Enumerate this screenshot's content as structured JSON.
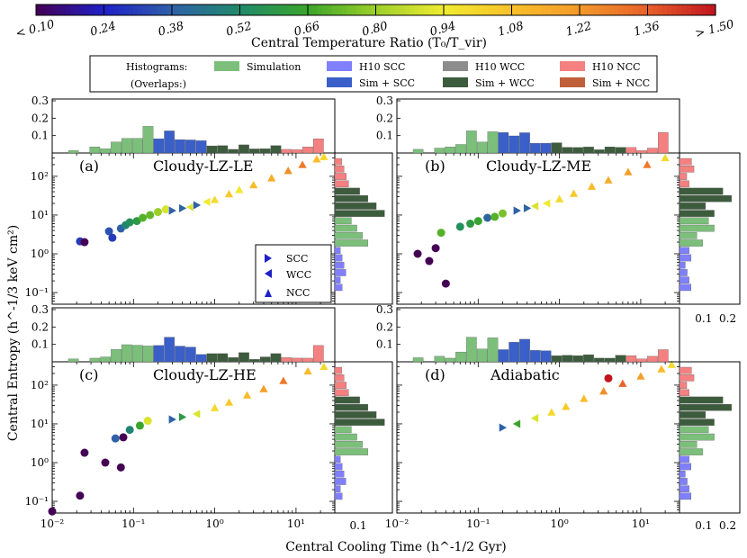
{
  "colorbar": {
    "label": "Central Temperature Ratio (T₀/T_vir)",
    "ticks": [
      "< 0.10",
      "0.24",
      "0.38",
      "0.52",
      "0.66",
      "0.80",
      "0.94",
      "1.08",
      "1.22",
      "1.36",
      "> 1.50"
    ],
    "colors": [
      "#440154",
      "#1f20c8",
      "#2f60a8",
      "#1f8a6a",
      "#3aa52a",
      "#9ccf2a",
      "#f0ec30",
      "#f9c02a",
      "#f39a2a",
      "#e8602a",
      "#c0141e"
    ]
  },
  "legend": {
    "histograms_label": "Histograms:",
    "overlaps_label": "(Overlaps:)",
    "items": [
      {
        "label": "Simulation",
        "color": "#7bbf7b"
      },
      {
        "label": "H10 SCC",
        "color": "#8080ff"
      },
      {
        "label": "H10 WCC",
        "color": "#8c8c8c"
      },
      {
        "label": "H10 NCC",
        "color": "#f48080"
      },
      {
        "label": "Sim + SCC",
        "color": "#3a5fc8"
      },
      {
        "label": "Sim + WCC",
        "color": "#3d5c3d"
      },
      {
        "label": "Sim + NCC",
        "color": "#c0603a"
      }
    ]
  },
  "marker_legend": [
    "SCC",
    "WCC",
    "NCC"
  ],
  "axes": {
    "xlabel": "Central Cooling Time (h^-1/2 Gyr)",
    "ylabel": "Central Entropy (h^-1/3 keV cm²)",
    "x_ticks": [
      "10⁻²",
      "10⁻¹",
      "10⁰",
      "10¹"
    ],
    "y_ticks": [
      "10⁻¹",
      "10⁰",
      "10¹",
      "10²"
    ],
    "top_hist_ticks": [
      "0.1",
      "0.2",
      "0.3"
    ],
    "side_hist_ticks": [
      "0.1",
      "0.2"
    ],
    "xlim": [
      0.01,
      30
    ],
    "ylim": [
      0.05,
      400
    ]
  },
  "chart_data": [
    {
      "type": "scatter",
      "panel": "(a)",
      "title": "Cloudy-LZ-LE",
      "points": [
        {
          "x": 0.022,
          "y": 2.1,
          "t": 0.3,
          "m": "circle"
        },
        {
          "x": 0.025,
          "y": 2.0,
          "t": 0.1,
          "m": "circle"
        },
        {
          "x": 0.05,
          "y": 3.8,
          "t": 0.35,
          "m": "circle"
        },
        {
          "x": 0.055,
          "y": 2.6,
          "t": 0.3,
          "m": "circle"
        },
        {
          "x": 0.07,
          "y": 4.5,
          "t": 0.38,
          "m": "circle"
        },
        {
          "x": 0.08,
          "y": 5.5,
          "t": 0.5,
          "m": "circle"
        },
        {
          "x": 0.09,
          "y": 6.5,
          "t": 0.55,
          "m": "circle"
        },
        {
          "x": 0.11,
          "y": 7.0,
          "t": 0.6,
          "m": "circle"
        },
        {
          "x": 0.13,
          "y": 8.5,
          "t": 0.7,
          "m": "circle"
        },
        {
          "x": 0.16,
          "y": 10.0,
          "t": 0.72,
          "m": "circle"
        },
        {
          "x": 0.2,
          "y": 12.0,
          "t": 0.8,
          "m": "circle"
        },
        {
          "x": 0.25,
          "y": 14.0,
          "t": 0.9,
          "m": "circle"
        },
        {
          "x": 0.3,
          "y": 13.0,
          "t": 0.38,
          "m": "scc"
        },
        {
          "x": 0.4,
          "y": 15.0,
          "t": 0.4,
          "m": "scc"
        },
        {
          "x": 0.5,
          "y": 16.0,
          "t": 0.9,
          "m": "wcc"
        },
        {
          "x": 0.6,
          "y": 18.0,
          "t": 0.38,
          "m": "scc"
        },
        {
          "x": 0.8,
          "y": 22.0,
          "t": 0.95,
          "m": "wcc"
        },
        {
          "x": 1.0,
          "y": 25.0,
          "t": 1.0,
          "m": "ncc"
        },
        {
          "x": 1.5,
          "y": 35.0,
          "t": 1.05,
          "m": "ncc"
        },
        {
          "x": 2.0,
          "y": 45.0,
          "t": 0.95,
          "m": "ncc"
        },
        {
          "x": 3.0,
          "y": 60.0,
          "t": 1.1,
          "m": "ncc"
        },
        {
          "x": 5.0,
          "y": 90.0,
          "t": 1.15,
          "m": "ncc"
        },
        {
          "x": 8.0,
          "y": 140.0,
          "t": 1.25,
          "m": "ncc"
        },
        {
          "x": 12.0,
          "y": 200.0,
          "t": 1.3,
          "m": "ncc"
        },
        {
          "x": 18.0,
          "y": 280.0,
          "t": 1.1,
          "m": "ncc"
        },
        {
          "x": 22.0,
          "y": 320.0,
          "t": 1.0,
          "m": "ncc"
        }
      ]
    },
    {
      "type": "scatter",
      "panel": "(b)",
      "title": "Cloudy-LZ-ME",
      "points": [
        {
          "x": 0.018,
          "y": 1.0,
          "t": 0.1,
          "m": "circle"
        },
        {
          "x": 0.025,
          "y": 0.65,
          "t": 0.1,
          "m": "circle"
        },
        {
          "x": 0.03,
          "y": 1.4,
          "t": 0.1,
          "m": "circle"
        },
        {
          "x": 0.04,
          "y": 0.17,
          "t": 0.1,
          "m": "circle"
        },
        {
          "x": 0.035,
          "y": 3.5,
          "t": 0.7,
          "m": "circle"
        },
        {
          "x": 0.06,
          "y": 5.0,
          "t": 0.55,
          "m": "circle"
        },
        {
          "x": 0.08,
          "y": 6.0,
          "t": 0.6,
          "m": "circle"
        },
        {
          "x": 0.1,
          "y": 7.0,
          "t": 0.65,
          "m": "circle"
        },
        {
          "x": 0.13,
          "y": 8.5,
          "t": 0.4,
          "m": "circle"
        },
        {
          "x": 0.16,
          "y": 9.0,
          "t": 0.7,
          "m": "circle"
        },
        {
          "x": 0.2,
          "y": 11.0,
          "t": 0.75,
          "m": "circle"
        },
        {
          "x": 0.3,
          "y": 13.0,
          "t": 0.38,
          "m": "scc"
        },
        {
          "x": 0.4,
          "y": 15.0,
          "t": 0.4,
          "m": "scc"
        },
        {
          "x": 0.5,
          "y": 17.0,
          "t": 0.9,
          "m": "wcc"
        },
        {
          "x": 0.7,
          "y": 20.0,
          "t": 0.95,
          "m": "wcc"
        },
        {
          "x": 1.0,
          "y": 26.0,
          "t": 1.0,
          "m": "ncc"
        },
        {
          "x": 1.5,
          "y": 36.0,
          "t": 1.05,
          "m": "ncc"
        },
        {
          "x": 2.5,
          "y": 55.0,
          "t": 1.1,
          "m": "ncc"
        },
        {
          "x": 4.0,
          "y": 80.0,
          "t": 1.15,
          "m": "ncc"
        },
        {
          "x": 7.0,
          "y": 130.0,
          "t": 1.2,
          "m": "ncc"
        },
        {
          "x": 12.0,
          "y": 200.0,
          "t": 1.3,
          "m": "ncc"
        },
        {
          "x": 20.0,
          "y": 300.0,
          "t": 1.0,
          "m": "ncc"
        }
      ]
    },
    {
      "type": "scatter",
      "panel": "(c)",
      "title": "Cloudy-LZ-HE",
      "points": [
        {
          "x": 0.01,
          "y": 0.055,
          "t": 0.1,
          "m": "circle"
        },
        {
          "x": 0.022,
          "y": 0.14,
          "t": 0.1,
          "m": "circle"
        },
        {
          "x": 0.025,
          "y": 1.8,
          "t": 0.1,
          "m": "circle"
        },
        {
          "x": 0.045,
          "y": 1.0,
          "t": 0.1,
          "m": "circle"
        },
        {
          "x": 0.07,
          "y": 0.75,
          "t": 0.1,
          "m": "circle"
        },
        {
          "x": 0.06,
          "y": 4.2,
          "t": 0.38,
          "m": "circle"
        },
        {
          "x": 0.075,
          "y": 4.5,
          "t": 0.1,
          "m": "circle"
        },
        {
          "x": 0.09,
          "y": 7.0,
          "t": 0.5,
          "m": "circle"
        },
        {
          "x": 0.12,
          "y": 9.0,
          "t": 0.66,
          "m": "circle"
        },
        {
          "x": 0.15,
          "y": 12.0,
          "t": 0.9,
          "m": "circle"
        },
        {
          "x": 0.3,
          "y": 13.0,
          "t": 0.38,
          "m": "scc"
        },
        {
          "x": 0.4,
          "y": 15.0,
          "t": 0.6,
          "m": "scc"
        },
        {
          "x": 0.6,
          "y": 18.0,
          "t": 0.9,
          "m": "wcc"
        },
        {
          "x": 1.0,
          "y": 26.0,
          "t": 1.0,
          "m": "ncc"
        },
        {
          "x": 1.5,
          "y": 36.0,
          "t": 1.05,
          "m": "ncc"
        },
        {
          "x": 2.5,
          "y": 55.0,
          "t": 1.1,
          "m": "ncc"
        },
        {
          "x": 4.0,
          "y": 80.0,
          "t": 1.2,
          "m": "ncc"
        },
        {
          "x": 7.0,
          "y": 130.0,
          "t": 1.3,
          "m": "ncc"
        },
        {
          "x": 14.0,
          "y": 230.0,
          "t": 1.1,
          "m": "ncc"
        },
        {
          "x": 22.0,
          "y": 300.0,
          "t": 1.0,
          "m": "ncc"
        }
      ]
    },
    {
      "type": "scatter",
      "panel": "(d)",
      "title": "Adiabatic",
      "points": [
        {
          "x": 0.2,
          "y": 8.0,
          "t": 0.38,
          "m": "scc"
        },
        {
          "x": 0.3,
          "y": 10.0,
          "t": 0.66,
          "m": "wcc"
        },
        {
          "x": 0.5,
          "y": 14.0,
          "t": 0.9,
          "m": "wcc"
        },
        {
          "x": 0.8,
          "y": 20.0,
          "t": 1.0,
          "m": "ncc"
        },
        {
          "x": 1.2,
          "y": 28.0,
          "t": 1.05,
          "m": "ncc"
        },
        {
          "x": 2.0,
          "y": 45.0,
          "t": 1.1,
          "m": "ncc"
        },
        {
          "x": 3.5,
          "y": 70.0,
          "t": 1.25,
          "m": "ncc"
        },
        {
          "x": 4.0,
          "y": 150.0,
          "t": 1.5,
          "m": "circle"
        },
        {
          "x": 6.0,
          "y": 110.0,
          "t": 1.35,
          "m": "ncc"
        },
        {
          "x": 10.0,
          "y": 170.0,
          "t": 1.2,
          "m": "ncc"
        },
        {
          "x": 18.0,
          "y": 260.0,
          "t": 1.1,
          "m": "ncc"
        },
        {
          "x": 24.0,
          "y": 340.0,
          "t": 1.0,
          "m": "ncc"
        }
      ]
    }
  ]
}
